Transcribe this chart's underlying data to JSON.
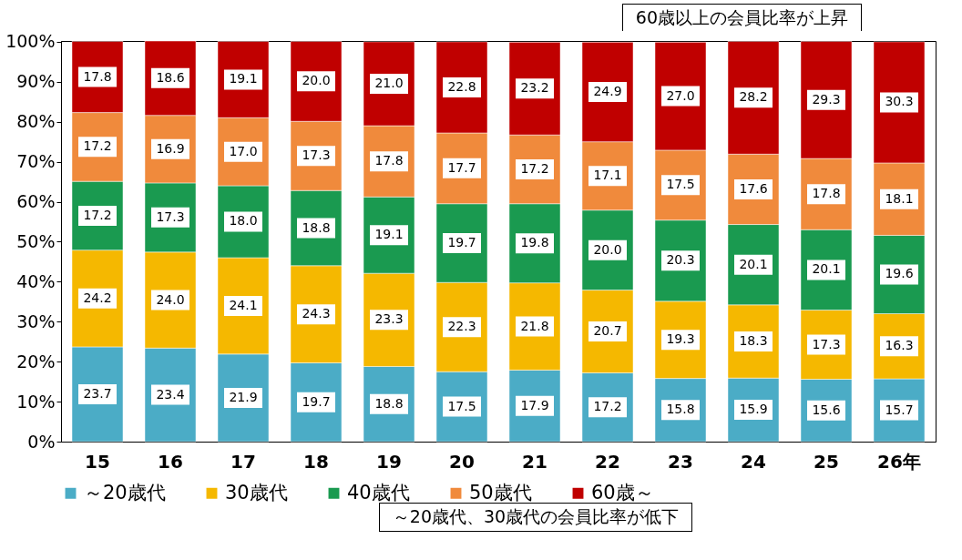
{
  "chart_data": {
    "type": "bar",
    "stacked": true,
    "legend": "bottom",
    "grid": false,
    "categories": [
      "15",
      "16",
      "17",
      "18",
      "19",
      "20",
      "21",
      "22",
      "23",
      "24",
      "25",
      "26年"
    ],
    "series": [
      {
        "name": "～20歳代",
        "color": "#4bacc6",
        "values": [
          23.7,
          23.4,
          21.9,
          19.7,
          18.8,
          17.5,
          17.9,
          17.2,
          15.8,
          15.9,
          15.6,
          15.7
        ],
        "value_labels": [
          "23.7",
          "23.4",
          "21.9",
          "19.7",
          "18.8",
          "17.5",
          "17.9",
          "17.2",
          "15.8",
          "15.9",
          "15.6",
          "15.7"
        ]
      },
      {
        "name": "30歳代",
        "color": "#f5b800",
        "values": [
          24.2,
          24.0,
          24.1,
          24.3,
          23.3,
          22.3,
          21.8,
          20.7,
          19.3,
          18.3,
          17.3,
          16.3
        ],
        "value_labels": [
          "24.2",
          "24.0",
          "24.1",
          "24.3",
          "23.3",
          "22.3",
          "21.8",
          "20.7",
          "19.3",
          "18.3",
          "17.3",
          "16.3"
        ]
      },
      {
        "name": "40歳代",
        "color": "#1a9a50",
        "values": [
          17.2,
          17.3,
          18.0,
          18.8,
          19.1,
          19.7,
          19.8,
          20.0,
          20.3,
          20.1,
          20.1,
          19.6
        ],
        "value_labels": [
          "17.2",
          "17.3",
          "18.0",
          "18.8",
          "19.1",
          "19.7",
          "19.8",
          "20.0",
          "20.3",
          "20.1",
          "20.1",
          "19.6"
        ]
      },
      {
        "name": "50歳代",
        "color": "#f08a3c",
        "values": [
          17.2,
          16.9,
          17.0,
          17.3,
          17.8,
          17.7,
          17.2,
          17.1,
          17.5,
          17.6,
          17.8,
          18.1
        ],
        "value_labels": [
          "17.2",
          "16.9",
          "17.0",
          "17.3",
          "17.8",
          "17.7",
          "17.2",
          "17.1",
          "17.5",
          "17.6",
          "17.8",
          "18.1"
        ]
      },
      {
        "name": "60歳～",
        "color": "#c00000",
        "values": [
          17.8,
          18.6,
          19.1,
          20.0,
          21.0,
          22.8,
          23.2,
          24.9,
          27.0,
          28.2,
          29.3,
          30.3
        ],
        "value_labels": [
          "17.8",
          "18.6",
          "19.1",
          "20.0",
          "21.0",
          "22.8",
          "23.2",
          "24.9",
          "27.0",
          "28.2",
          "29.3",
          "30.3"
        ]
      }
    ],
    "ylim": [
      0,
      100.2
    ],
    "yticks": [
      {
        "value": 0,
        "label": "0%"
      },
      {
        "value": 10,
        "label": "10%"
      },
      {
        "value": 20,
        "label": "20%"
      },
      {
        "value": 30,
        "label": "30%"
      },
      {
        "value": 40,
        "label": "40%"
      },
      {
        "value": 50,
        "label": "50%"
      },
      {
        "value": 60,
        "label": "60%"
      },
      {
        "value": 70,
        "label": "70%"
      },
      {
        "value": 80,
        "label": "80%"
      },
      {
        "value": 90,
        "label": "90%"
      },
      {
        "value": 100,
        "label": "100%"
      }
    ],
    "annotations": [
      "60歳以上の会員比率が上昇",
      "～20歳代、30歳代の会員比率が低下"
    ]
  }
}
